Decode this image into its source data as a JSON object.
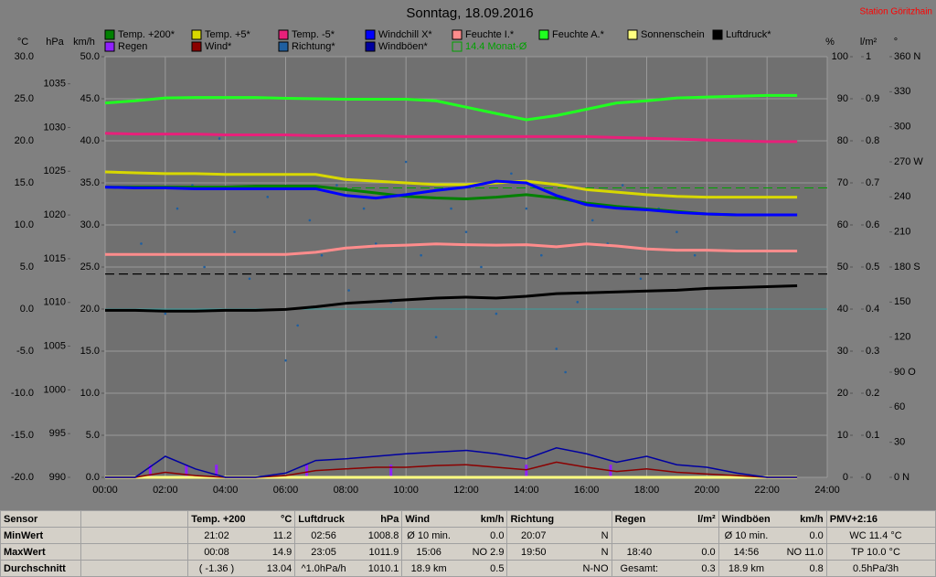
{
  "chart_data": {
    "type": "line",
    "title": "Sonntag, 18.09.2016",
    "station": "Station Göritzhain",
    "grid": true,
    "xlim": [
      0,
      24
    ],
    "xticks": [
      {
        "value": 0,
        "label": "00:00"
      },
      {
        "value": 2,
        "label": "02:00"
      },
      {
        "value": 4,
        "label": "04:00"
      },
      {
        "value": 6,
        "label": "06:00"
      },
      {
        "value": 8,
        "label": "08:00"
      },
      {
        "value": 10,
        "label": "10:00"
      },
      {
        "value": 12,
        "label": "12:00"
      },
      {
        "value": 14,
        "label": "14:00"
      },
      {
        "value": 16,
        "label": "16:00"
      },
      {
        "value": 18,
        "label": "18:00"
      },
      {
        "value": 20,
        "label": "20:00"
      },
      {
        "value": 22,
        "label": "22:00"
      },
      {
        "value": 24,
        "label": "24:00"
      }
    ],
    "x": [
      0,
      1,
      2,
      3,
      4,
      5,
      6,
      7,
      8,
      9,
      10,
      11,
      12,
      13,
      14,
      15,
      16,
      17,
      18,
      19,
      20,
      21,
      22,
      23
    ],
    "axes": {
      "temp": {
        "label": "°C",
        "lim": [
          -20,
          30
        ],
        "ticks": [
          {
            "value": -20,
            "label": "-20.0"
          },
          {
            "value": -15,
            "label": "-15.0"
          },
          {
            "value": -10,
            "label": "-10.0"
          },
          {
            "value": -5,
            "label": "-5.0"
          },
          {
            "value": 0,
            "label": "0.0"
          },
          {
            "value": 5,
            "label": "5.0"
          },
          {
            "value": 10,
            "label": "10.0"
          },
          {
            "value": 15,
            "label": "15.0"
          },
          {
            "value": 20,
            "label": "20.0"
          },
          {
            "value": 25,
            "label": "25.0"
          },
          {
            "value": 30,
            "label": "30.0"
          }
        ]
      },
      "hpa": {
        "label": "hPa",
        "lim": [
          990,
          1038.1
        ],
        "ticks": [
          990,
          995,
          1000,
          1005,
          1010,
          1015,
          1020,
          1025,
          1030,
          1035
        ]
      },
      "kmh": {
        "label": "km/h",
        "lim": [
          0,
          50
        ],
        "ticks": [
          {
            "value": 0,
            "label": "0.0"
          },
          {
            "value": 5,
            "label": "5.0"
          },
          {
            "value": 10,
            "label": "10.0"
          },
          {
            "value": 15,
            "label": "15.0"
          },
          {
            "value": 20,
            "label": "20.0"
          },
          {
            "value": 25,
            "label": "25.0"
          },
          {
            "value": 30,
            "label": "30.0"
          },
          {
            "value": 35,
            "label": "35.0"
          },
          {
            "value": 40,
            "label": "40.0"
          },
          {
            "value": 45,
            "label": "45.0"
          },
          {
            "value": 50,
            "label": "50.0"
          }
        ]
      },
      "pct": {
        "label": "%",
        "lim": [
          0,
          100
        ],
        "ticks": [
          0,
          10,
          20,
          30,
          40,
          50,
          60,
          70,
          80,
          90,
          100
        ]
      },
      "rain": {
        "label": "l/m²",
        "lim": [
          0,
          1
        ],
        "ticks": [
          0,
          0.1,
          0.2,
          0.3,
          0.4,
          0.5,
          0.6,
          0.7,
          0.8,
          0.9,
          1
        ]
      },
      "dir": {
        "label": "°",
        "lim": [
          0,
          360
        ],
        "ticks": [
          {
            "value": 0,
            "label": "0   N"
          },
          {
            "value": 30,
            "label": "30"
          },
          {
            "value": 60,
            "label": "60"
          },
          {
            "value": 90,
            "label": "90  O"
          },
          {
            "value": 120,
            "label": "120"
          },
          {
            "value": 150,
            "label": "150"
          },
          {
            "value": 180,
            "label": "180 S"
          },
          {
            "value": 210,
            "label": "210"
          },
          {
            "value": 240,
            "label": "240"
          },
          {
            "value": 270,
            "label": "270 W"
          },
          {
            "value": 300,
            "label": "300"
          },
          {
            "value": 330,
            "label": "330"
          },
          {
            "value": 360,
            "label": "360 N"
          }
        ]
      }
    },
    "series": [
      {
        "name": "Temp. +200*",
        "color": "#008000",
        "axis": "temp",
        "values": [
          14.5,
          14.5,
          14.5,
          14.5,
          14.5,
          14.6,
          14.6,
          14.6,
          14.2,
          13.8,
          13.4,
          13.2,
          13.1,
          13.3,
          13.6,
          13.2,
          12.6,
          12.2,
          11.9,
          11.6,
          11.3,
          11.2,
          11.2,
          11.2
        ]
      },
      {
        "name": "Temp. +5*",
        "color": "#d8d800",
        "axis": "temp",
        "values": [
          16.3,
          16.2,
          16.1,
          16.1,
          16.0,
          16.0,
          16.0,
          16.0,
          15.4,
          15.2,
          15.0,
          14.8,
          14.8,
          15.0,
          15.2,
          14.8,
          14.2,
          13.9,
          13.6,
          13.4,
          13.3,
          13.3,
          13.3,
          13.3
        ]
      },
      {
        "name": "Temp. -5*",
        "color": "#e8207a",
        "axis": "temp",
        "values": [
          20.9,
          20.8,
          20.8,
          20.8,
          20.7,
          20.7,
          20.7,
          20.6,
          20.6,
          20.6,
          20.5,
          20.5,
          20.5,
          20.5,
          20.5,
          20.5,
          20.5,
          20.4,
          20.3,
          20.2,
          20.1,
          20.0,
          19.9,
          19.9
        ]
      },
      {
        "name": "Windchill X*",
        "color": "#0000ff",
        "axis": "temp",
        "values": [
          14.5,
          14.4,
          14.4,
          14.3,
          14.3,
          14.3,
          14.3,
          14.3,
          13.5,
          13.2,
          13.6,
          14.1,
          14.5,
          15.2,
          15.0,
          13.5,
          12.4,
          12.0,
          11.8,
          11.5,
          11.3,
          11.2,
          11.2,
          11.2
        ]
      },
      {
        "name": "Feuchte I.*",
        "color": "#ff8c8c",
        "axis": "pct",
        "values": [
          53,
          53,
          53,
          53,
          53,
          53,
          53,
          53.5,
          54.5,
          55,
          55.2,
          55.5,
          55.3,
          55.2,
          55.3,
          54.8,
          55.5,
          55,
          54.3,
          54,
          54,
          53.8,
          53.8,
          53.8
        ]
      },
      {
        "name": "Feuchte A.*",
        "color": "#20ff20",
        "axis": "pct",
        "values": [
          89,
          89.5,
          90.2,
          90.3,
          90.3,
          90.3,
          90.1,
          90,
          89.9,
          89.9,
          89.9,
          89.5,
          88,
          86.5,
          85,
          86,
          87.5,
          89,
          89.5,
          90.2,
          90.4,
          90.6,
          90.8,
          90.8
        ]
      },
      {
        "name": "Sonnenschein",
        "color": "#ffff80",
        "axis": "pct",
        "values": [
          0,
          0,
          0,
          0,
          0,
          0,
          0,
          0,
          0,
          0,
          0,
          0,
          0,
          0,
          0,
          0,
          0,
          0,
          0,
          0,
          0,
          0,
          0,
          0
        ]
      },
      {
        "name": "Luftdruck*",
        "color": "#000000",
        "axis": "hpa",
        "values": [
          1009.1,
          1009.1,
          1009.0,
          1009.0,
          1009.1,
          1009.1,
          1009.2,
          1009.5,
          1009.9,
          1010.1,
          1010.3,
          1010.5,
          1010.6,
          1010.5,
          1010.7,
          1011.0,
          1011.1,
          1011.2,
          1011.3,
          1011.4,
          1011.6,
          1011.7,
          1011.8,
          1011.9
        ]
      },
      {
        "name": "Regen",
        "color": "#9020ff",
        "axis": "rain",
        "type": "bar",
        "x": [
          1.5,
          2.7,
          3.7,
          6.7,
          9.5,
          14.0,
          16.8
        ],
        "values": [
          0.03,
          0.03,
          0.03,
          0.03,
          0.03,
          0.03,
          0.03
        ]
      },
      {
        "name": "Wind*",
        "color": "#8b0000",
        "axis": "kmh",
        "values": [
          0,
          0,
          0.6,
          0.2,
          0,
          0,
          0.2,
          0.8,
          1.0,
          1.2,
          1.2,
          1.4,
          1.5,
          1.2,
          0.9,
          1.8,
          1.2,
          0.7,
          1.0,
          0.6,
          0.4,
          0.2,
          0,
          0
        ]
      },
      {
        "name": "Richtung*",
        "color": "#1f5fa0",
        "axis": "dir",
        "type": "scatter",
        "x": [
          1.2,
          1.6,
          2.0,
          2.4,
          2.9,
          3.3,
          3.8,
          4.3,
          4.8,
          5.4,
          6.0,
          6.4,
          6.8,
          7.2,
          7.7,
          8.1,
          8.6,
          9.0,
          9.5,
          10.0,
          10.5,
          11.0,
          11.5,
          12.0,
          12.5,
          13.0,
          13.5,
          14.0,
          14.5,
          15.0,
          15.3,
          15.7,
          16.2,
          16.7,
          17.2,
          17.8,
          18.4,
          19.0,
          19.6,
          20.3
        ],
        "values": [
          200,
          260,
          140,
          230,
          250,
          180,
          290,
          210,
          170,
          240,
          100,
          130,
          220,
          190,
          250,
          160,
          230,
          200,
          150,
          270,
          190,
          120,
          230,
          210,
          180,
          140,
          260,
          230,
          190,
          110,
          90,
          150,
          220,
          200,
          250,
          170,
          230,
          210,
          190,
          240
        ]
      },
      {
        "name": "Windböen*",
        "color": "#0000a0",
        "axis": "kmh",
        "values": [
          0,
          0,
          2.5,
          1.0,
          0,
          0,
          0.5,
          2.0,
          2.2,
          2.5,
          2.8,
          3.0,
          3.2,
          2.8,
          2.2,
          3.5,
          2.8,
          1.8,
          2.5,
          1.5,
          1.2,
          0.5,
          0,
          0
        ]
      },
      {
        "name": "14.4 Monat-Ø",
        "color": "#00a000",
        "axis": "temp",
        "type": "hline",
        "value": 14.4
      }
    ],
    "reference_lines": [
      {
        "axis": "hpa",
        "value": 1013.25,
        "color": "#000000"
      }
    ]
  },
  "table": {
    "first": "Sensor",
    "columns": [
      {
        "title": "Temp. +200",
        "unit": "°C"
      },
      {
        "title": "Luftdruck",
        "unit": "hPa"
      },
      {
        "title": "Wind",
        "unit": "km/h"
      },
      {
        "title": "Richtung",
        "unit": ""
      },
      {
        "title": "Regen",
        "unit": "l/m²"
      },
      {
        "title": "Windböen",
        "unit": "km/h"
      },
      {
        "title": "PMV+2:16",
        "unit": ""
      }
    ],
    "rows": [
      {
        "label": "MinWert",
        "cells": [
          [
            "21:02",
            "11.2"
          ],
          [
            "02:56",
            "1008.8"
          ],
          [
            "Ø 10 min.",
            "0.0"
          ],
          [
            "20:07",
            "N"
          ],
          [
            "",
            ""
          ],
          [
            "Ø 10 min.",
            "0.0"
          ],
          [
            "WC 11.4 °C",
            ""
          ]
        ]
      },
      {
        "label": "MaxWert",
        "cells": [
          [
            "00:08",
            "14.9"
          ],
          [
            "23:05",
            "1011.9"
          ],
          [
            "15:06",
            "NO 2.9"
          ],
          [
            "19:50",
            "N"
          ],
          [
            "18:40",
            "0.0"
          ],
          [
            "14:56",
            "NO 11.0"
          ],
          [
            "TP 10.0 °C",
            ""
          ]
        ]
      },
      {
        "label": "Durchschnitt",
        "cells": [
          [
            "( -1.36 )",
            "13.04"
          ],
          [
            "^1.0hPa/h",
            "1010.1"
          ],
          [
            "18.9 km",
            "0.5"
          ],
          [
            "",
            "N-NO"
          ],
          [
            "Gesamt:",
            "0.3"
          ],
          [
            "18.9 km",
            "0.8"
          ],
          [
            "0.5hPa/3h",
            ""
          ]
        ]
      }
    ]
  }
}
